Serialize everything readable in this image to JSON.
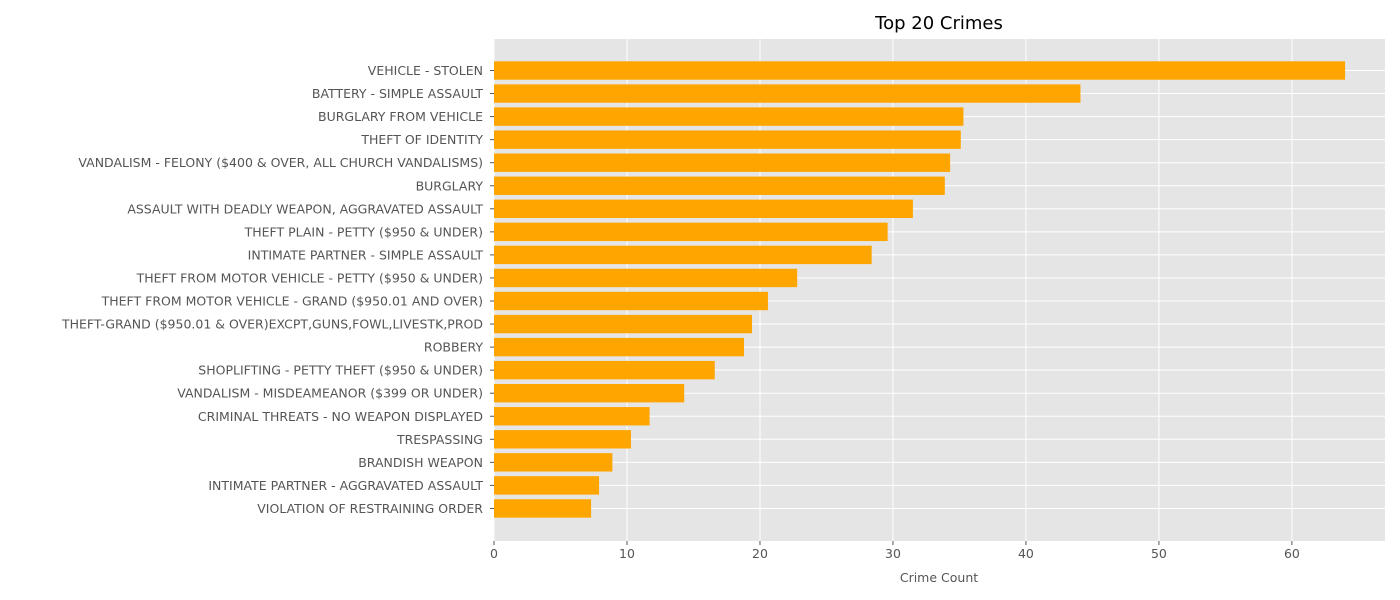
{
  "chart_data": {
    "type": "bar",
    "orientation": "horizontal",
    "title": "Top 20 Crimes",
    "xlabel": "Crime Count",
    "ylabel": "",
    "xlim": [
      0,
      67
    ],
    "xticks": [
      0,
      10,
      20,
      30,
      40,
      50,
      60
    ],
    "bar_color": "#ffa500",
    "background_color": "#e5e5e5",
    "grid": true,
    "categories": [
      "VEHICLE - STOLEN",
      "BATTERY - SIMPLE ASSAULT",
      "BURGLARY FROM VEHICLE",
      "THEFT OF IDENTITY",
      "VANDALISM - FELONY ($400 & OVER, ALL CHURCH VANDALISMS)",
      "BURGLARY",
      "ASSAULT WITH DEADLY WEAPON, AGGRAVATED ASSAULT",
      "THEFT PLAIN - PETTY ($950 & UNDER)",
      "INTIMATE PARTNER - SIMPLE ASSAULT",
      "THEFT FROM MOTOR VEHICLE - PETTY ($950 & UNDER)",
      "THEFT FROM MOTOR VEHICLE - GRAND ($950.01 AND OVER)",
      "THEFT-GRAND ($950.01 & OVER)EXCPT,GUNS,FOWL,LIVESTK,PROD",
      "ROBBERY",
      "SHOPLIFTING - PETTY THEFT ($950 & UNDER)",
      "VANDALISM - MISDEAMEANOR ($399 OR UNDER)",
      "CRIMINAL THREATS - NO WEAPON DISPLAYED",
      "TRESPASSING",
      "BRANDISH WEAPON",
      "INTIMATE PARTNER - AGGRAVATED ASSAULT",
      "VIOLATION OF RESTRAINING ORDER"
    ],
    "values": [
      64,
      44.1,
      35.3,
      35.1,
      34.3,
      33.9,
      31.5,
      29.6,
      28.4,
      22.8,
      20.6,
      19.4,
      18.8,
      16.6,
      14.3,
      11.7,
      10.3,
      8.9,
      7.9,
      7.3
    ]
  }
}
